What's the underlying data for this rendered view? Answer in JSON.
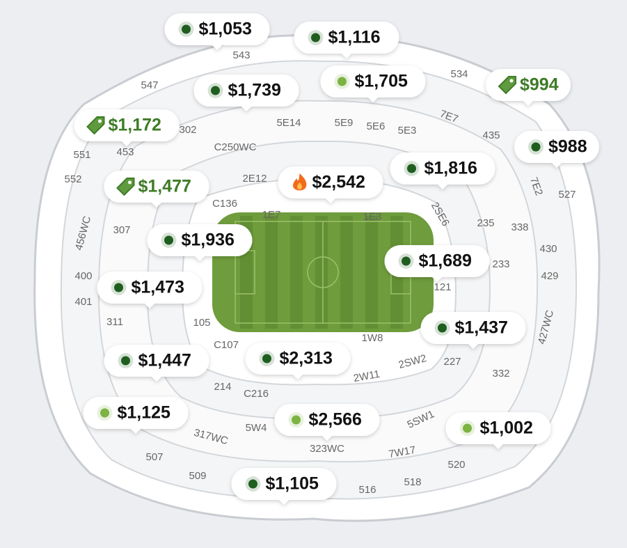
{
  "pins": [
    {
      "price": "$1,053",
      "icon": "dot",
      "color": "#1f5e1f"
    },
    {
      "price": "$1,116",
      "icon": "dot",
      "color": "#1f5e1f"
    },
    {
      "price": "$1,739",
      "icon": "dot",
      "color": "#1f5e1f"
    },
    {
      "price": "$1,705",
      "icon": "dot",
      "color": "#7cb342"
    },
    {
      "price": "$994",
      "icon": "tag",
      "color": "#3e7b27"
    },
    {
      "price": "$1,172",
      "icon": "tag",
      "color": "#3e7b27"
    },
    {
      "price": "$988",
      "icon": "dot",
      "color": "#1f5e1f"
    },
    {
      "price": "$1,816",
      "icon": "dot",
      "color": "#1f5e1f"
    },
    {
      "price": "$2,542",
      "icon": "fire",
      "color": "#f26b1d"
    },
    {
      "price": "$1,477",
      "icon": "tag",
      "color": "#3e7b27"
    },
    {
      "price": "$1,936",
      "icon": "dot",
      "color": "#1f5e1f"
    },
    {
      "price": "$1,689",
      "icon": "dot",
      "color": "#1f5e1f"
    },
    {
      "price": "$1,473",
      "icon": "dot",
      "color": "#1f5e1f"
    },
    {
      "price": "$1,437",
      "icon": "dot",
      "color": "#1f5e1f"
    },
    {
      "price": "$1,447",
      "icon": "dot",
      "color": "#1f5e1f"
    },
    {
      "price": "$2,313",
      "icon": "dot",
      "color": "#1f5e1f"
    },
    {
      "price": "$1,125",
      "icon": "dot",
      "color": "#7cb342"
    },
    {
      "price": "$2,566",
      "icon": "dot",
      "color": "#7cb342"
    },
    {
      "price": "$1,002",
      "icon": "dot",
      "color": "#7cb342"
    },
    {
      "price": "$1,105",
      "icon": "dot",
      "color": "#1f5e1f"
    }
  ],
  "sections": [
    "543",
    "534",
    "547",
    "7E7",
    "302",
    "5E14",
    "5E9",
    "5E6",
    "5E3",
    "435",
    "551",
    "453",
    "C250WC",
    "552",
    "2E12",
    "7E2",
    "527",
    "C136",
    "1E7",
    "1E3",
    "2SE6",
    "235",
    "338",
    "456WC",
    "307",
    "430",
    "233",
    "429",
    "400",
    "121",
    "401",
    "427WC",
    "311",
    "105",
    "1W8",
    "C107",
    "227",
    "2SW2",
    "332",
    "214",
    "C216",
    "2W11",
    "5SW1",
    "5W4",
    "317WC",
    "323WC",
    "7W17",
    "507",
    "520",
    "509",
    "516",
    "518"
  ]
}
